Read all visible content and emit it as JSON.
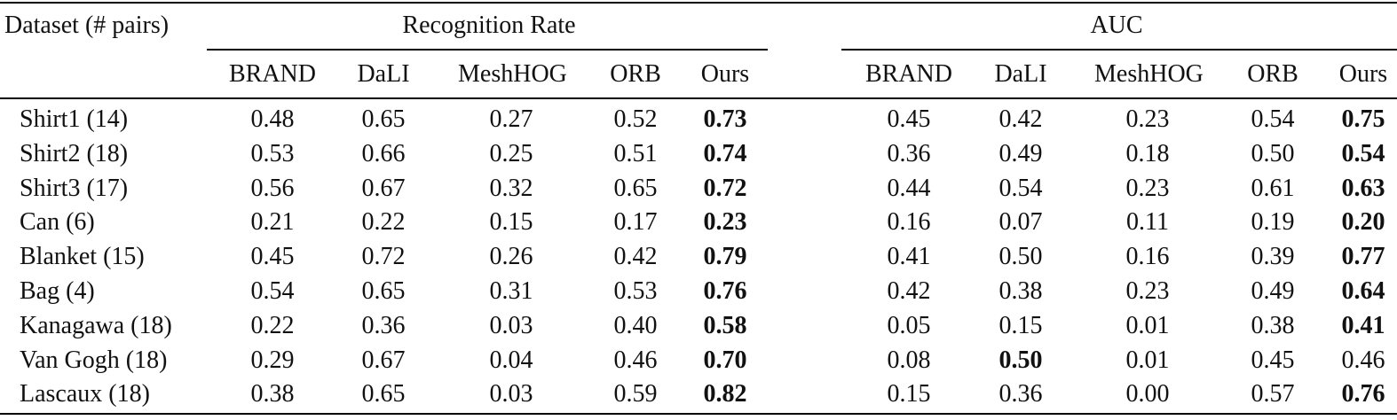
{
  "table": {
    "corner_header": "Dataset (# pairs)",
    "group_headers": [
      "Recognition Rate",
      "AUC"
    ],
    "sub_headers": [
      "BRAND",
      "DaLI",
      "MeshHOG",
      "ORB",
      "Ours",
      "BRAND",
      "DaLI",
      "MeshHOG",
      "ORB",
      "Ours"
    ],
    "rows": [
      {
        "label": "Shirt1 (14)",
        "values": [
          "0.48",
          "0.65",
          "0.27",
          "0.52",
          "0.73",
          "0.45",
          "0.42",
          "0.23",
          "0.54",
          "0.75"
        ],
        "bold": [
          4,
          9
        ]
      },
      {
        "label": "Shirt2 (18)",
        "values": [
          "0.53",
          "0.66",
          "0.25",
          "0.51",
          "0.74",
          "0.36",
          "0.49",
          "0.18",
          "0.50",
          "0.54"
        ],
        "bold": [
          4,
          9
        ]
      },
      {
        "label": "Shirt3 (17)",
        "values": [
          "0.56",
          "0.67",
          "0.32",
          "0.65",
          "0.72",
          "0.44",
          "0.54",
          "0.23",
          "0.61",
          "0.63"
        ],
        "bold": [
          4,
          9
        ]
      },
      {
        "label": "Can (6)",
        "values": [
          "0.21",
          "0.22",
          "0.15",
          "0.17",
          "0.23",
          "0.16",
          "0.07",
          "0.11",
          "0.19",
          "0.20"
        ],
        "bold": [
          4,
          9
        ]
      },
      {
        "label": "Blanket (15)",
        "values": [
          "0.45",
          "0.72",
          "0.26",
          "0.42",
          "0.79",
          "0.41",
          "0.50",
          "0.16",
          "0.39",
          "0.77"
        ],
        "bold": [
          4,
          9
        ]
      },
      {
        "label": "Bag (4)",
        "values": [
          "0.54",
          "0.65",
          "0.31",
          "0.53",
          "0.76",
          "0.42",
          "0.38",
          "0.23",
          "0.49",
          "0.64"
        ],
        "bold": [
          4,
          9
        ]
      },
      {
        "label": "Kanagawa (18)",
        "values": [
          "0.22",
          "0.36",
          "0.03",
          "0.40",
          "0.58",
          "0.05",
          "0.15",
          "0.01",
          "0.38",
          "0.41"
        ],
        "bold": [
          4,
          9
        ]
      },
      {
        "label": "Van Gogh (18)",
        "values": [
          "0.29",
          "0.67",
          "0.04",
          "0.46",
          "0.70",
          "0.08",
          "0.50",
          "0.01",
          "0.45",
          "0.46"
        ],
        "bold": [
          4,
          6
        ]
      },
      {
        "label": "Lascaux (18)",
        "values": [
          "0.38",
          "0.65",
          "0.03",
          "0.59",
          "0.82",
          "0.15",
          "0.36",
          "0.00",
          "0.57",
          "0.76"
        ],
        "bold": [
          4,
          9
        ]
      }
    ]
  }
}
